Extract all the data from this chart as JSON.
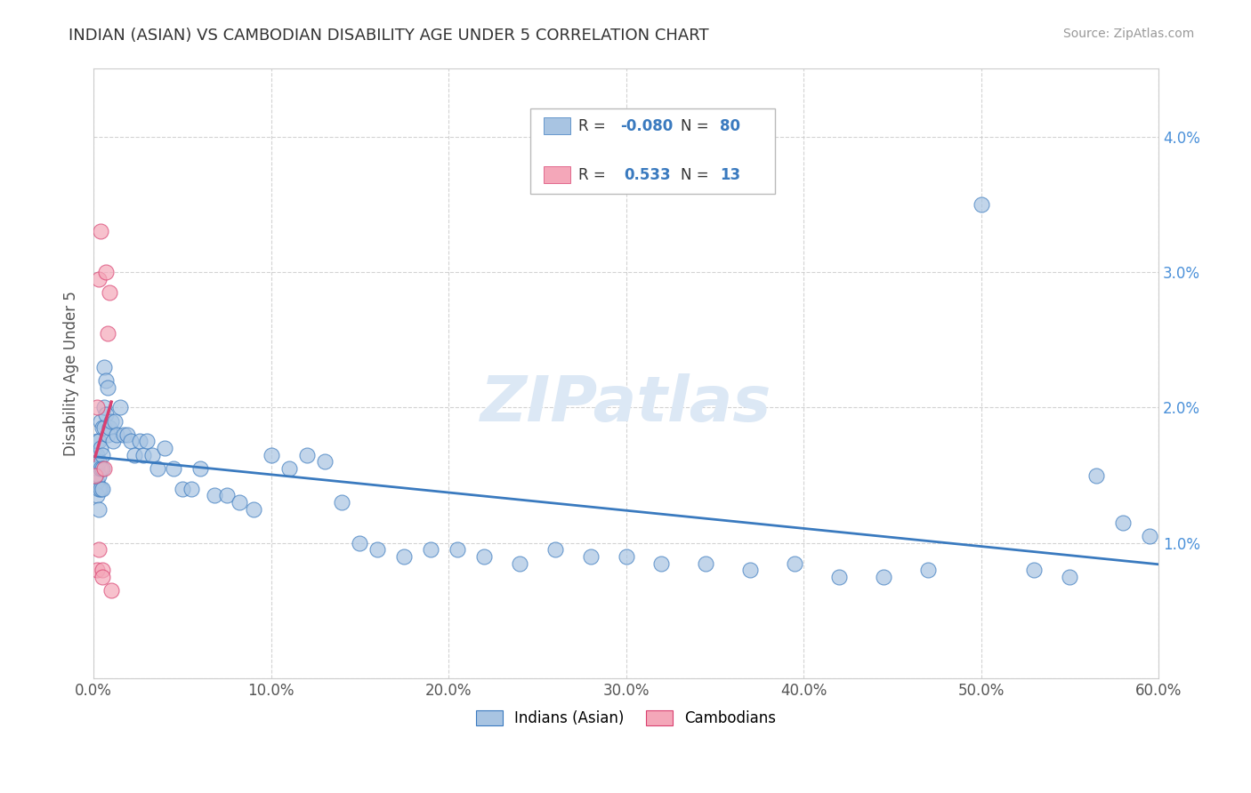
{
  "title": "INDIAN (ASIAN) VS CAMBODIAN DISABILITY AGE UNDER 5 CORRELATION CHART",
  "source": "Source: ZipAtlas.com",
  "ylabel": "Disability Age Under 5",
  "xlim": [
    0.0,
    0.6
  ],
  "ylim": [
    0.0,
    0.045
  ],
  "xticks": [
    0.0,
    0.1,
    0.2,
    0.3,
    0.4,
    0.5,
    0.6
  ],
  "xticklabels": [
    "0.0%",
    "10.0%",
    "20.0%",
    "30.0%",
    "40.0%",
    "50.0%",
    "60.0%"
  ],
  "yticks_left": [
    0.0,
    0.01,
    0.02,
    0.03,
    0.04
  ],
  "yticklabels_left": [
    "",
    "",
    "",
    "",
    ""
  ],
  "yticks_right": [
    0.01,
    0.02,
    0.03,
    0.04
  ],
  "yticklabels_right": [
    "1.0%",
    "2.0%",
    "3.0%",
    "4.0%"
  ],
  "indian_color": "#a8c4e2",
  "cambodian_color": "#f4a7b9",
  "indian_line_color": "#3a7abf",
  "cambodian_line_color": "#d94070",
  "right_tick_color": "#4a90d9",
  "background_color": "#ffffff",
  "grid_color": "#c8c8c8",
  "indian_x": [
    0.001,
    0.001,
    0.001,
    0.002,
    0.002,
    0.002,
    0.002,
    0.002,
    0.003,
    0.003,
    0.003,
    0.003,
    0.003,
    0.004,
    0.004,
    0.004,
    0.004,
    0.005,
    0.005,
    0.005,
    0.005,
    0.006,
    0.006,
    0.006,
    0.007,
    0.007,
    0.008,
    0.008,
    0.009,
    0.01,
    0.011,
    0.012,
    0.013,
    0.015,
    0.017,
    0.019,
    0.021,
    0.023,
    0.026,
    0.028,
    0.03,
    0.033,
    0.036,
    0.04,
    0.045,
    0.05,
    0.055,
    0.06,
    0.068,
    0.075,
    0.082,
    0.09,
    0.1,
    0.11,
    0.12,
    0.13,
    0.14,
    0.15,
    0.16,
    0.175,
    0.19,
    0.205,
    0.22,
    0.24,
    0.26,
    0.28,
    0.3,
    0.32,
    0.345,
    0.37,
    0.395,
    0.42,
    0.445,
    0.47,
    0.5,
    0.53,
    0.55,
    0.565,
    0.58,
    0.595
  ],
  "indian_y": [
    0.0165,
    0.0155,
    0.0145,
    0.0175,
    0.0165,
    0.0155,
    0.0145,
    0.0135,
    0.0175,
    0.016,
    0.015,
    0.014,
    0.0125,
    0.019,
    0.017,
    0.0155,
    0.014,
    0.0185,
    0.0165,
    0.0155,
    0.014,
    0.023,
    0.02,
    0.0185,
    0.022,
    0.0195,
    0.0215,
    0.018,
    0.0185,
    0.019,
    0.0175,
    0.019,
    0.018,
    0.02,
    0.018,
    0.018,
    0.0175,
    0.0165,
    0.0175,
    0.0165,
    0.0175,
    0.0165,
    0.0155,
    0.017,
    0.0155,
    0.014,
    0.014,
    0.0155,
    0.0135,
    0.0135,
    0.013,
    0.0125,
    0.0165,
    0.0155,
    0.0165,
    0.016,
    0.013,
    0.01,
    0.0095,
    0.009,
    0.0095,
    0.0095,
    0.009,
    0.0085,
    0.0095,
    0.009,
    0.009,
    0.0085,
    0.0085,
    0.008,
    0.0085,
    0.0075,
    0.0075,
    0.008,
    0.035,
    0.008,
    0.0075,
    0.015,
    0.0115,
    0.0105
  ],
  "cambodian_x": [
    0.001,
    0.002,
    0.002,
    0.003,
    0.003,
    0.004,
    0.005,
    0.005,
    0.006,
    0.007,
    0.008,
    0.009,
    0.01
  ],
  "cambodian_y": [
    0.015,
    0.02,
    0.008,
    0.0295,
    0.0095,
    0.033,
    0.008,
    0.0075,
    0.0155,
    0.03,
    0.0255,
    0.0285,
    0.0065
  ],
  "watermark_text": "ZIPatlas",
  "watermark_color": "#dce8f5"
}
